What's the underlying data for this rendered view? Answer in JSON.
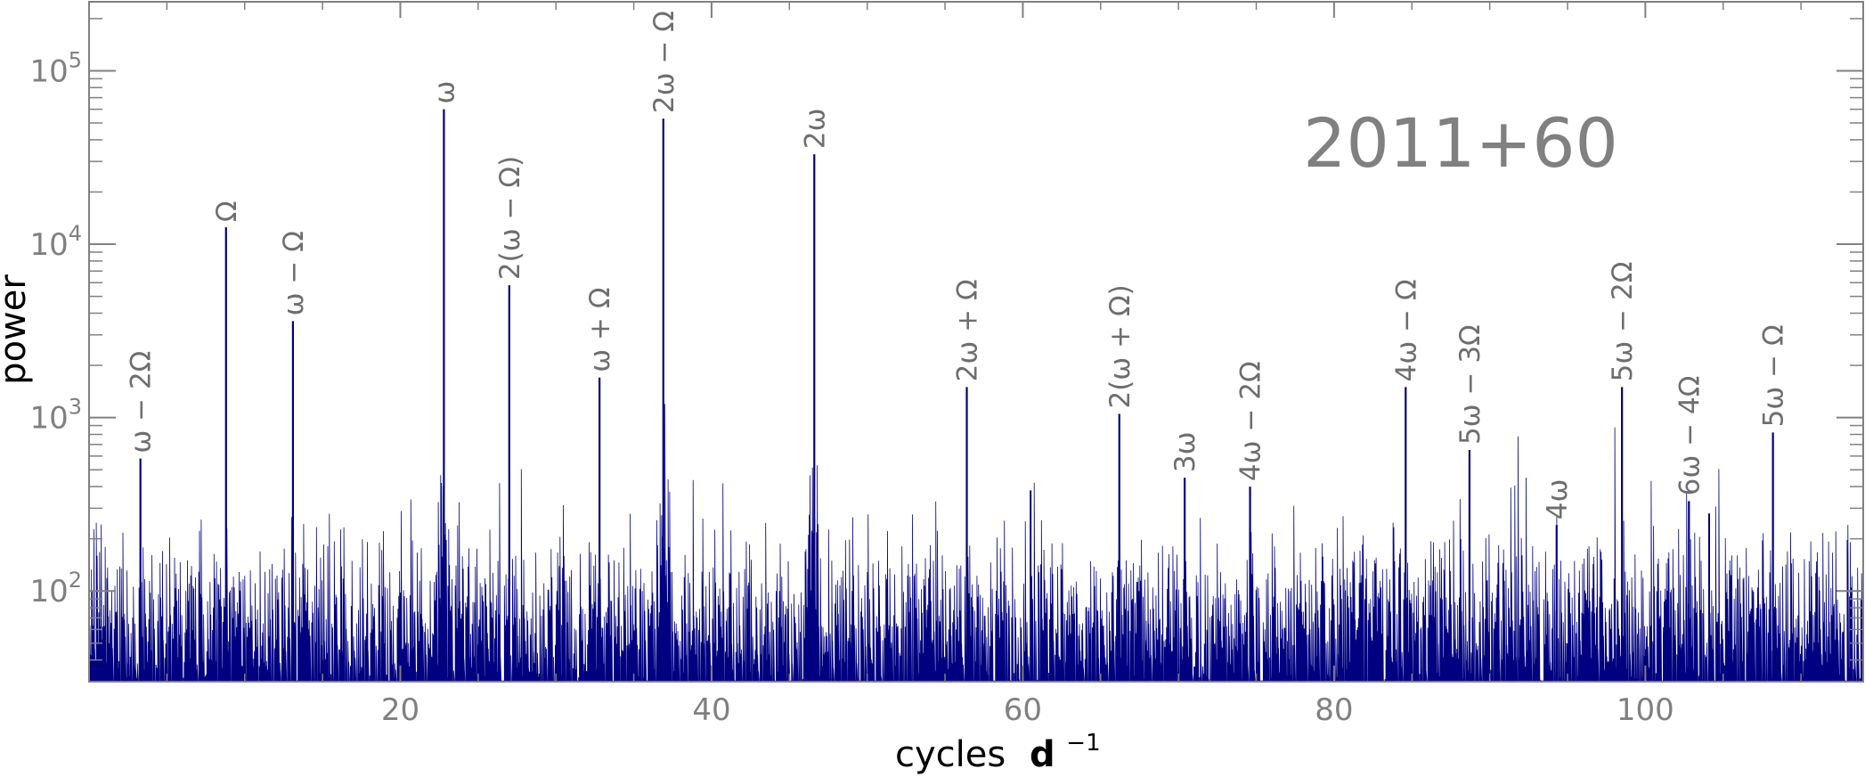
{
  "chart_data": {
    "type": "line",
    "title": "2011+60",
    "xlabel": "cycles",
    "xlabel_unit_base": "d",
    "xlabel_unit_exp": "−1",
    "ylabel": "power",
    "xlim": [
      0,
      114
    ],
    "ylim": [
      30,
      250000
    ],
    "yscale": "log",
    "grid": false,
    "x_ticks": [
      20,
      40,
      60,
      80,
      100
    ],
    "x_tick_labels": [
      "20",
      "40",
      "60",
      "80",
      "100"
    ],
    "y_ticks": [
      100,
      1000,
      10000,
      100000
    ],
    "y_tick_labels": [
      {
        "base": "10",
        "exp": "2"
      },
      {
        "base": "10",
        "exp": "3"
      },
      {
        "base": "10",
        "exp": "4"
      },
      {
        "base": "10",
        "exp": "5"
      }
    ],
    "noise_level": 90,
    "peaks": [
      {
        "label": "ω − 2Ω",
        "x": 3.3,
        "y": 580
      },
      {
        "label": "Ω",
        "x": 8.8,
        "y": 12500
      },
      {
        "label": "ω − Ω",
        "x": 13.1,
        "y": 3600
      },
      {
        "label": "ω",
        "x": 22.8,
        "y": 60000
      },
      {
        "label": "2(ω − Ω)",
        "x": 27.0,
        "y": 5800
      },
      {
        "label": "ω + Ω",
        "x": 32.8,
        "y": 1700
      },
      {
        "label": "2ω − Ω",
        "x": 36.9,
        "y": 53000
      },
      {
        "label": "2ω",
        "x": 46.6,
        "y": 33000
      },
      {
        "label": "2ω + Ω",
        "x": 56.4,
        "y": 1500
      },
      {
        "label": "2(ω + Ω)",
        "x": 66.2,
        "y": 1050
      },
      {
        "label": "3ω",
        "x": 70.4,
        "y": 450
      },
      {
        "label": "4ω − 2Ω",
        "x": 74.6,
        "y": 400
      },
      {
        "label": "4ω − Ω",
        "x": 84.6,
        "y": 1500
      },
      {
        "label": "5ω − 3Ω",
        "x": 88.7,
        "y": 650
      },
      {
        "label": "4ω",
        "x": 94.3,
        "y": 240
      },
      {
        "label": "5ω − 2Ω",
        "x": 98.5,
        "y": 1500
      },
      {
        "label": "6ω − 4Ω",
        "x": 102.8,
        "y": 330
      },
      {
        "label": "5ω − Ω",
        "x": 108.2,
        "y": 820
      }
    ],
    "unlabeled_peaks": [
      {
        "x": 60.5,
        "y": 380
      },
      {
        "x": 104.1,
        "y": 280
      }
    ],
    "series_color": "#000080",
    "text_color": "#808080"
  }
}
